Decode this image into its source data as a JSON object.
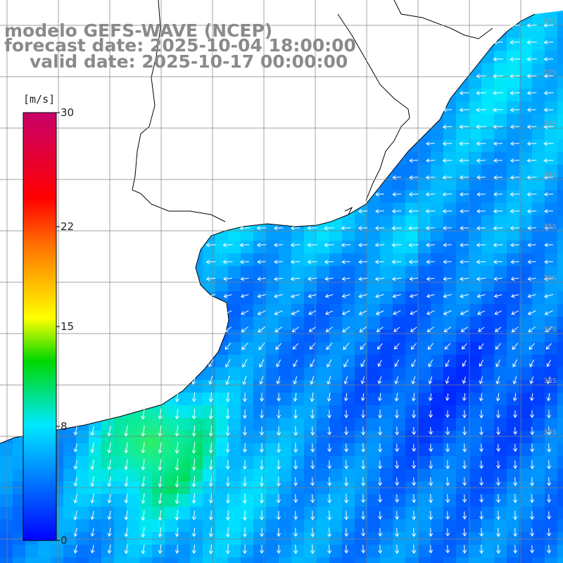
{
  "title": {
    "model": "modelo GEFS-WAVE (NCEP)",
    "forecast": "forecast date: 2025-10-04 18:00:00",
    "valid": "valid date: 2025-10-17 00:00:00"
  },
  "colorbar": {
    "units": "[m/s]",
    "min": 0,
    "max": 30,
    "ticks": [
      {
        "value": 30,
        "label": "30"
      },
      {
        "value": 22,
        "label": "22"
      },
      {
        "value": 15,
        "label": "15"
      },
      {
        "value": 8,
        "label": "8"
      },
      {
        "value": 0,
        "label": "0"
      }
    ],
    "colors": [
      "#0000ff",
      "#00e0ff",
      "#00ff00",
      "#ffff00",
      "#ff7f00",
      "#ff0000",
      "#c8006a"
    ]
  },
  "grid_labels": {
    "latitudes": [
      "31S",
      "32S",
      "33S",
      "34S",
      "35S",
      "36S",
      "37S",
      "38S",
      "39S"
    ]
  },
  "wind_field": {
    "variable": "wind speed",
    "units": "m/s",
    "regions": [
      {
        "area": "coastal lagoons and near-shore (north)",
        "speed": 7
      },
      {
        "area": "open ocean east (center)",
        "speed": 4
      },
      {
        "area": "open ocean east (south)",
        "speed": 3
      },
      {
        "area": "south-west coastal jet maximum",
        "speed": 10
      },
      {
        "area": "southern margin",
        "speed": 6
      }
    ],
    "direction_north": "from east toward west",
    "direction_south": "from north toward south"
  }
}
